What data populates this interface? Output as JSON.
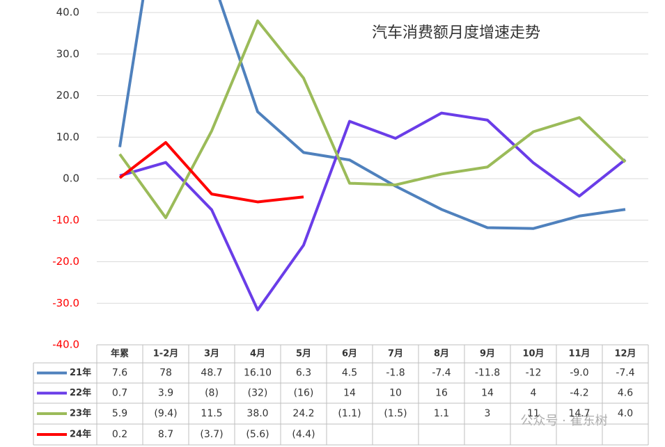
{
  "chart_data": {
    "type": "line",
    "title": "汽车消费额月度增速走势",
    "categories": [
      "年累",
      "1-2月",
      "3月",
      "4月",
      "5月",
      "6月",
      "7月",
      "8月",
      "9月",
      "10月",
      "11月",
      "12月"
    ],
    "series": [
      {
        "name": "21年",
        "color": "#4f81bd",
        "values": [
          7.6,
          78,
          48.7,
          16.1,
          6.3,
          4.5,
          -1.8,
          -7.4,
          -11.8,
          -12,
          -9.0,
          -7.4
        ],
        "value_labels": [
          "7.6",
          "78",
          "48.7",
          "16.10",
          "6.3",
          "4.5",
          "-1.8",
          "-7.4",
          "-11.8",
          "-12",
          "-9.0",
          "-7.4"
        ]
      },
      {
        "name": "22年",
        "color": "#6a3de8",
        "values": [
          0.7,
          3.9,
          -7.5,
          -31.6,
          -16,
          13.8,
          9.7,
          15.8,
          14.1,
          3.8,
          -4.2,
          4.6
        ],
        "value_labels": [
          "0.7",
          "3.9",
          "(8)",
          "(32)",
          "(16)",
          "14",
          "10",
          "16",
          "14",
          "4",
          "-4.2",
          "4.6"
        ]
      },
      {
        "name": "23年",
        "color": "#9bbb59",
        "values": [
          5.9,
          -9.4,
          11.5,
          38.0,
          24.2,
          -1.1,
          -1.5,
          1.1,
          2.8,
          11.3,
          14.7,
          4.0
        ],
        "value_labels": [
          "5.9",
          "(9.4)",
          "11.5",
          "38.0",
          "24.2",
          "(1.1)",
          "(1.5)",
          "1.1",
          "3",
          "11",
          "14.7",
          "4.0"
        ]
      },
      {
        "name": "24年",
        "color": "#ff0000",
        "values": [
          0.2,
          8.7,
          -3.7,
          -5.6,
          -4.4,
          null,
          null,
          null,
          null,
          null,
          null,
          null
        ],
        "value_labels": [
          "0.2",
          "8.7",
          "(3.7)",
          "(5.6)",
          "(4.4)",
          null,
          null,
          null,
          null,
          null,
          null,
          null
        ]
      }
    ],
    "ylim": [
      -40,
      40
    ],
    "yticks": [
      {
        "value": -40,
        "label": "-40.0"
      },
      {
        "value": -30,
        "label": "-30.0"
      },
      {
        "value": -20,
        "label": "-20.0"
      },
      {
        "value": -10,
        "label": "-10.0"
      },
      {
        "value": 0,
        "label": "0.0"
      },
      {
        "value": 10,
        "label": "10.0"
      },
      {
        "value": 20,
        "label": "20.0"
      },
      {
        "value": 30,
        "label": "30.0"
      },
      {
        "value": 40,
        "label": "40.0"
      }
    ],
    "negative_tick_color": "#ff0000",
    "grid": true,
    "watermark": "公众号 · 崔东树"
  }
}
